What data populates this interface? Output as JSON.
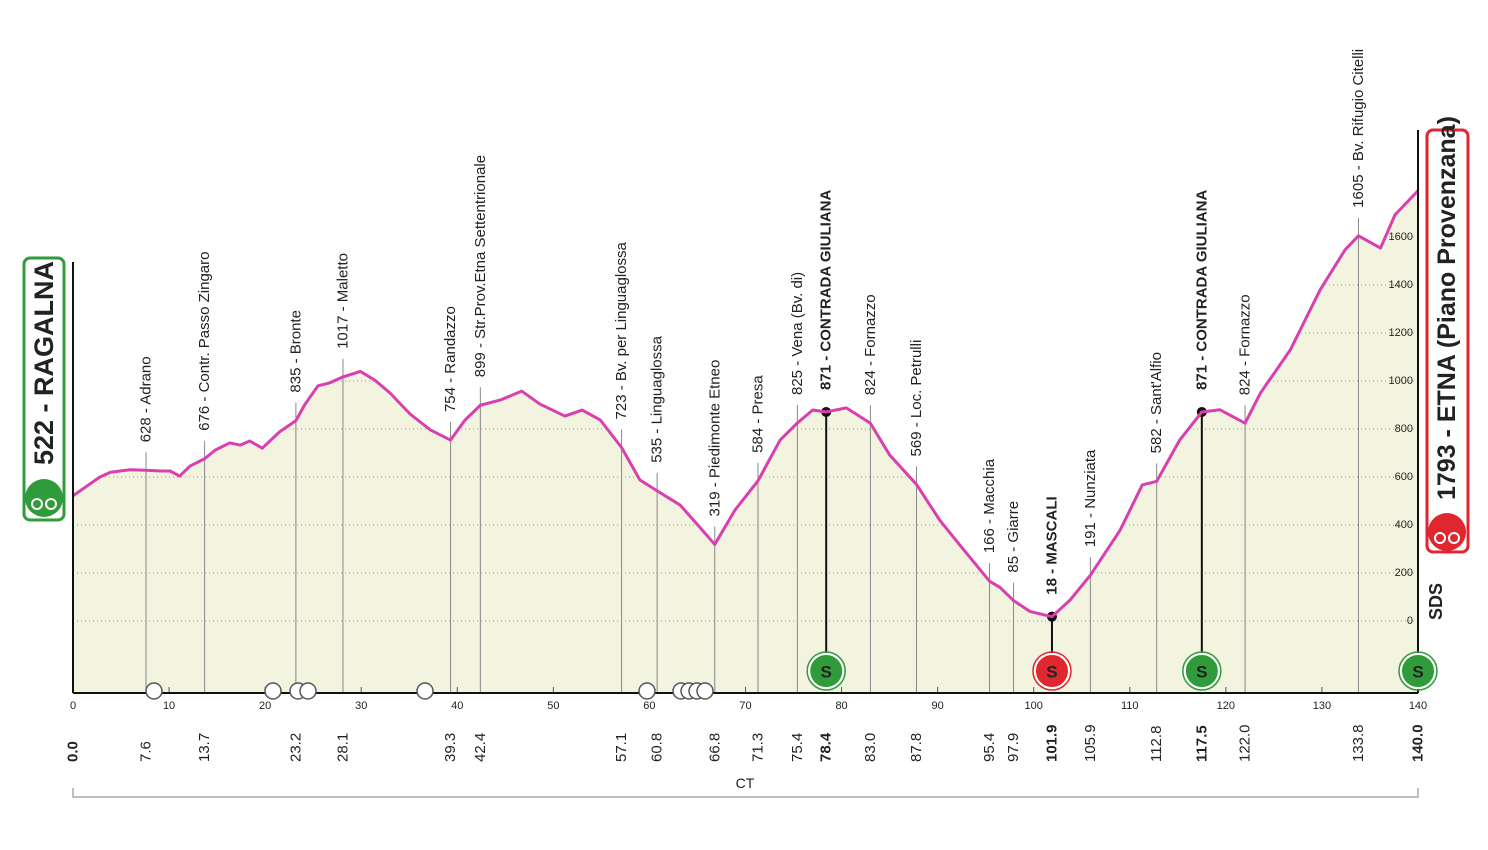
{
  "chart_data": {
    "type": "line",
    "start": {
      "km": {
        "value": 0,
        "label": "0.0"
      },
      "label": "522 - RAGALNA"
    },
    "finish": {
      "km": {
        "value": 140,
        "label": "140.0"
      },
      "label": "1793 - ETNA (Piano Provenzana)"
    },
    "x": [
      0,
      2.8,
      3.9,
      5.9,
      7.6,
      9.1,
      10.1,
      11.1,
      12.2,
      13.7,
      14.8,
      16.3,
      17.4,
      18.4,
      19.7,
      21.5,
      23.2,
      24.1,
      25.5,
      26.7,
      28.1,
      29.9,
      31.4,
      33.0,
      35.1,
      37.2,
      39.3,
      40.8,
      42.4,
      44.5,
      46.7,
      48.6,
      51.2,
      53.0,
      54.9,
      57.1,
      59.0,
      61.1,
      63.2,
      65.3,
      66.8,
      68.9,
      71.3,
      73.6,
      75.4,
      77.0,
      78.4,
      80.5,
      83.0,
      85.0,
      87.8,
      90.2,
      92.3,
      95.4,
      96.5,
      97.9,
      99.6,
      101.9,
      103.8,
      105.9,
      109.0,
      111.3,
      112.8,
      115.2,
      117.5,
      119.4,
      122.0,
      123.6,
      126.7,
      129.8,
      132.4,
      133.8,
      136.1,
      137.6,
      140
    ],
    "values": [
      522,
      600,
      620,
      630,
      628,
      625,
      625,
      604,
      646,
      676,
      712,
      742,
      733,
      750,
      720,
      788,
      835,
      900,
      980,
      992,
      1017,
      1040,
      1004,
      950,
      862,
      796,
      754,
      837,
      899,
      921,
      958,
      904,
      854,
      879,
      837,
      723,
      588,
      535,
      483,
      388,
      319,
      462,
      584,
      754,
      825,
      879,
      871,
      888,
      824,
      692,
      569,
      421,
      317,
      166,
      140,
      85,
      40,
      18,
      88,
      191,
      379,
      567,
      582,
      754,
      871,
      880,
      824,
      950,
      1129,
      1379,
      1546,
      1605,
      1554,
      1692,
      1793
    ],
    "xlim": [
      0,
      140
    ],
    "ylim": [
      -300,
      2000
    ],
    "xticks": [
      0,
      10,
      20,
      30,
      40,
      50,
      60,
      70,
      80,
      90,
      100,
      110,
      120,
      130,
      140
    ],
    "yticks": [
      0,
      200,
      400,
      600,
      800,
      1000,
      1200,
      1400,
      1600
    ],
    "grid": true,
    "color": "#d93fae",
    "fill": "#f3f4df",
    "waypoints": [
      {
        "km": 7.6,
        "label": "628 - Adrano"
      },
      {
        "km": 13.7,
        "label": "676 - Contr. Passo Zingaro"
      },
      {
        "km": 23.2,
        "label": "835 - Bronte"
      },
      {
        "km": 28.1,
        "label": "1017 - Maletto"
      },
      {
        "km": 39.3,
        "label": "754 - Randazzo"
      },
      {
        "km": 42.4,
        "label": "899 - Str.Prov.Etna Settentrionale"
      },
      {
        "km": 57.1,
        "label": "723 - Bv. per Linguaglossa"
      },
      {
        "km": 60.8,
        "label": "535 - Linguaglossa"
      },
      {
        "km": 66.8,
        "label": "319 - Piedimonte Etneo"
      },
      {
        "km": 71.3,
        "label": "584 - Presa"
      },
      {
        "km": 75.4,
        "label": "825 - Vena (Bv. di)"
      },
      {
        "km": 78.4,
        "label": "871 - CONTRADA GIULIANA",
        "bold": true
      },
      {
        "km": {
          "value": 83,
          "label": "83.0"
        },
        "label": "824 - Fornazzo"
      },
      {
        "km": 87.8,
        "label": "569 - Loc. Petrulli"
      },
      {
        "km": 95.4,
        "label": "166 - Macchia"
      },
      {
        "km": 97.9,
        "label": "85 - Giarre"
      },
      {
        "km": 101.9,
        "label": "18 - MASCALI",
        "bold": true
      },
      {
        "km": 105.9,
        "label": "191 - Nunziata"
      },
      {
        "km": 112.8,
        "label": "582 - Sant'Alfio"
      },
      {
        "km": 117.5,
        "label": "871 - CONTRADA GIULIANA",
        "bold": true
      },
      {
        "km": {
          "value": 122,
          "label": "122.0"
        },
        "label": "824 - Fornazzo"
      },
      {
        "km": 133.8,
        "label": "1605 - Bv. Rifugio Citelli"
      }
    ],
    "markers": [
      {
        "km": 78.4,
        "label": "S",
        "color": "#2f9b3a"
      },
      {
        "km": 101.9,
        "label": "S",
        "color": "#e0262e"
      },
      {
        "km": 117.5,
        "label": "S",
        "color": "#2f9b3a"
      },
      {
        "km": 140,
        "label": "S",
        "color": "#2f9b3a"
      }
    ],
    "province": "CT",
    "logo": "SDS"
  }
}
